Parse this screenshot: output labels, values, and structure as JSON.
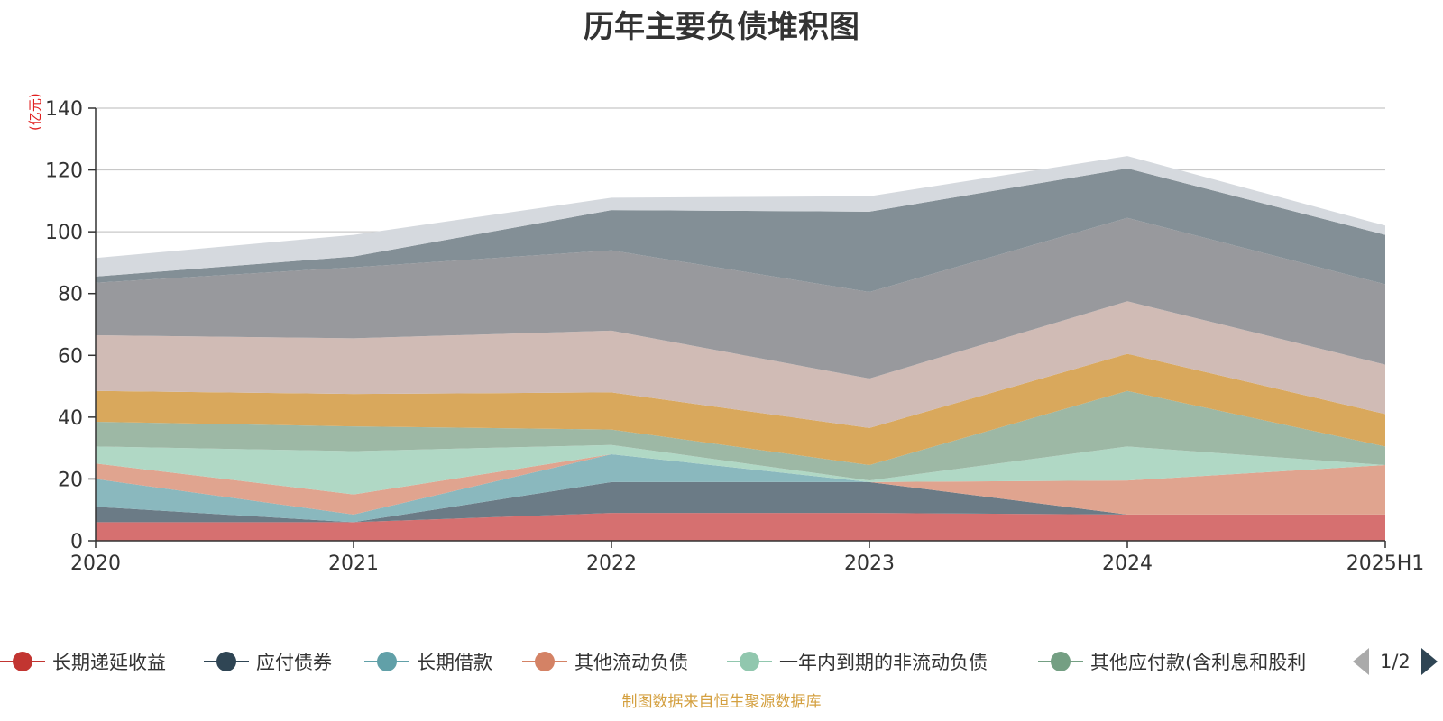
{
  "title": "历年主要负债堆积图",
  "y_unit": "(亿元)",
  "source": "制图数据来自恒生聚源数据库",
  "legend_page": "1/2",
  "legend_items": [
    {
      "label": "长期递延收益",
      "color": "#c23531"
    },
    {
      "label": "应付债券",
      "color": "#2f4554"
    },
    {
      "label": "长期借款",
      "color": "#61a0a8"
    },
    {
      "label": "其他流动负债",
      "color": "#d48265"
    },
    {
      "label": "一年内到期的非流动负债",
      "color": "#91c7ae"
    },
    {
      "label": "其他应付款(含利息和股利",
      "color": "#749f83"
    }
  ],
  "chart_data": {
    "type": "area",
    "stacked": true,
    "title": "历年主要负债堆积图",
    "ylabel": "(亿元)",
    "ylim": [
      0,
      140
    ],
    "yticks": [
      0,
      20,
      40,
      60,
      80,
      100,
      120,
      140
    ],
    "grid": true,
    "legend_position": "bottom",
    "categories": [
      "2020",
      "2021",
      "2022",
      "2023",
      "2024",
      "2025H1"
    ],
    "series": [
      {
        "name": "长期递延收益",
        "color": "#d67070",
        "values": [
          6,
          6,
          9,
          9,
          8.5,
          8.5
        ]
      },
      {
        "name": "应付债券",
        "color": "#6b7b86",
        "values": [
          5,
          0,
          10,
          10,
          0,
          0
        ]
      },
      {
        "name": "长期借款",
        "color": "#8ab8be",
        "values": [
          9,
          2.5,
          9,
          0,
          0,
          0
        ]
      },
      {
        "name": "其他流动负债",
        "color": "#e0a48f",
        "values": [
          5,
          6.5,
          0,
          0,
          11,
          16
        ]
      },
      {
        "name": "一年内到期的非流动负债",
        "color": "#b0d8c5",
        "values": [
          5.5,
          14,
          3,
          0.5,
          11,
          0
        ]
      },
      {
        "name": "其他应付款(含利息和股利",
        "color": "#9db8a5",
        "values": [
          8,
          8,
          5,
          5,
          18,
          6
        ]
      },
      {
        "color": "#d9a85c",
        "values": [
          10,
          10.5,
          12,
          12,
          12,
          10.5
        ]
      },
      {
        "color": "#d0bbb5",
        "values": [
          18,
          18,
          20,
          16,
          17,
          16
        ]
      },
      {
        "color": "#98999d",
        "values": [
          17,
          23,
          26,
          28,
          27,
          26
        ]
      },
      {
        "color": "#838f96",
        "values": [
          2,
          3.5,
          13,
          26,
          16,
          16
        ]
      },
      {
        "color": "#d5d9de",
        "values": [
          6,
          7,
          4,
          5,
          4,
          3
        ]
      }
    ]
  }
}
